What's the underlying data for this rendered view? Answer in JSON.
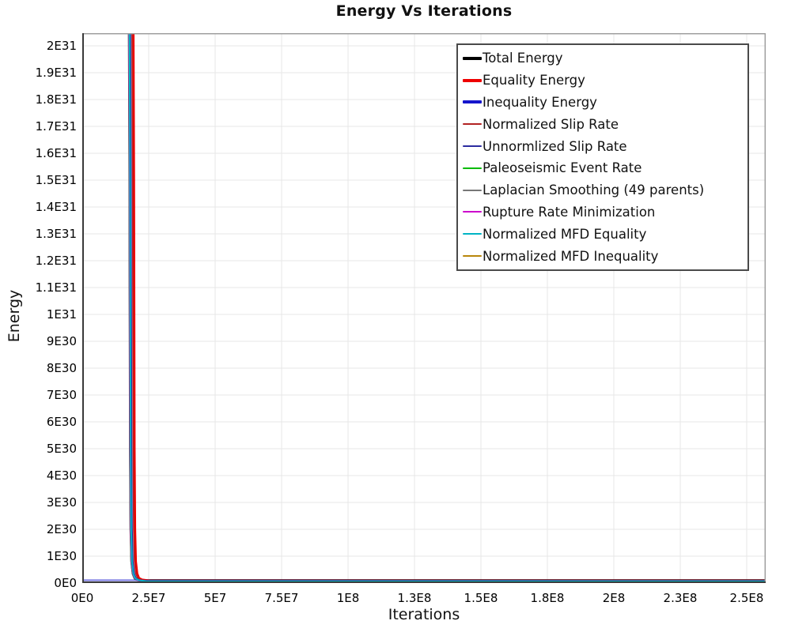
{
  "title": "Energy Vs Iterations",
  "x_axis_label": "Iterations",
  "y_axis_label": "Energy",
  "colors": {
    "grid": "#e7e7e7",
    "plot_border": "#9a9a9a",
    "axis_emphasis": "#3a3a3a",
    "legend_border": "#4a4a4a",
    "text": "#111111"
  },
  "chart_data": {
    "type": "line",
    "title": "Energy Vs Iterations",
    "xlabel": "Iterations",
    "ylabel": "Energy",
    "xlim": [
      0,
      257000000
    ],
    "ylim": [
      0,
      2.047e+31
    ],
    "grid": true,
    "legend_position": "top-right",
    "x_ticks": {
      "values": [
        0,
        25000000,
        50000000,
        75000000,
        100000000,
        125000000,
        150000000,
        175000000,
        200000000,
        225000000,
        250000000
      ],
      "labels": [
        "0E0",
        "2.5E7",
        "5E7",
        "7.5E7",
        "1E8",
        "1.3E8",
        "1.5E8",
        "1.8E8",
        "2E8",
        "2.3E8",
        "2.5E8"
      ]
    },
    "y_ticks": {
      "values": [
        0,
        1e+30,
        2e+30,
        3e+30,
        4e+30,
        5e+30,
        6e+30,
        7e+30,
        8e+30,
        9e+30,
        1e+31,
        1.1e+31,
        1.2e+31,
        1.3e+31,
        1.4e+31,
        1.5e+31,
        1.6e+31,
        1.7e+31,
        1.8e+31,
        1.9e+31,
        2e+31
      ],
      "labels": [
        "0E0",
        "1E30",
        "2E30",
        "3E30",
        "4E30",
        "5E30",
        "6E30",
        "7E30",
        "8E30",
        "9E30",
        "1E31",
        "1.1E31",
        "1.2E31",
        "1.3E31",
        "1.4E31",
        "1.5E31",
        "1.6E31",
        "1.7E31",
        "1.8E31",
        "1.9E31",
        "2E31"
      ]
    },
    "series": [
      {
        "name": "Total Energy",
        "color": "#000000",
        "width": 3.4,
        "thick_legend": true,
        "opacity": 1,
        "points": [
          [
            17600000,
            2.3e+31
          ],
          [
            17900000,
            1.5e+31
          ],
          [
            18100000,
            5e+30
          ],
          [
            18300000,
            2e+30
          ],
          [
            18600000,
            8e+29
          ],
          [
            19110000,
            3.5e+29
          ],
          [
            19800000,
            1.8e+29
          ],
          [
            21000000,
            1.2e+29
          ],
          [
            24000000,
            8.8e+28
          ],
          [
            258000000,
            8.8e+28
          ]
        ]
      },
      {
        "name": "Equality Energy",
        "color": "#ee0000",
        "width": 3.0,
        "thick_legend": true,
        "opacity": 1,
        "points": [
          [
            19120000,
            2.3e+31
          ],
          [
            19420000,
            1.5e+31
          ],
          [
            19620000,
            5e+30
          ],
          [
            19820000,
            2e+30
          ],
          [
            20120000,
            8e+29
          ],
          [
            20630000,
            3.5e+29
          ],
          [
            21320000,
            1.8e+29
          ],
          [
            22520000,
            1.2e+29
          ],
          [
            25520000,
            8.2e+28
          ],
          [
            258000000,
            8.2e+28
          ]
        ]
      },
      {
        "name": "Inequality Energy",
        "color": "#1515cc",
        "width": 2.2,
        "thick_legend": true,
        "opacity": 0.55,
        "points": [
          [
            0,
            1.05e+29
          ],
          [
            20000000,
            1.05e+29
          ],
          [
            23000000,
            9e+28
          ],
          [
            258000000,
            8e+28
          ]
        ]
      },
      {
        "name": "Normalized Slip Rate",
        "color": "#b22222",
        "width": 1.7,
        "thick_legend": false,
        "opacity": 1,
        "points": [
          [
            18650000,
            2.3e+31
          ],
          [
            18950000,
            1.5e+31
          ],
          [
            19150000,
            5e+30
          ],
          [
            19350000,
            2e+30
          ],
          [
            19650000,
            8e+29
          ],
          [
            20160000,
            3.5e+29
          ],
          [
            20850000,
            1.8e+29
          ],
          [
            22050000,
            1e+29
          ],
          [
            25050000,
            4.5e+28
          ],
          [
            258000000,
            4.5e+28
          ]
        ]
      },
      {
        "name": "Unnormlized Slip Rate",
        "color": "#2b2ba0",
        "width": 1.7,
        "thick_legend": false,
        "opacity": 1,
        "points": [
          [
            18050000,
            2.3e+31
          ],
          [
            18350000,
            1.5e+31
          ],
          [
            18550000,
            5e+30
          ],
          [
            18750000,
            2e+30
          ],
          [
            19050000,
            8e+29
          ],
          [
            19560000,
            3.5e+29
          ],
          [
            20250000,
            1.8e+29
          ],
          [
            21450000,
            1.1e+29
          ],
          [
            24450000,
            7.5e+28
          ],
          [
            258000000,
            7.5e+28
          ]
        ]
      },
      {
        "name": "Paleoseismic Event Rate",
        "color": "#00bb00",
        "width": 1.7,
        "thick_legend": false,
        "opacity": 1,
        "points": [
          [
            17500000,
            2.3e+31
          ],
          [
            17800000,
            1.5e+31
          ],
          [
            18000000,
            5e+30
          ],
          [
            18200000,
            2e+30
          ],
          [
            18500000,
            8e+29
          ],
          [
            19010000,
            3.5e+29
          ],
          [
            19700000,
            1.8e+29
          ],
          [
            20900000,
            1.1e+29
          ],
          [
            23900000,
            6e+28
          ],
          [
            258000000,
            6e+28
          ]
        ]
      },
      {
        "name": "Laplacian Smoothing (49 parents)",
        "color": "#777777",
        "width": 1.7,
        "thick_legend": false,
        "opacity": 1,
        "points": [
          [
            17400000,
            2.3e+31
          ],
          [
            17700000,
            1.5e+31
          ],
          [
            17900000,
            5e+30
          ],
          [
            18100000,
            2e+30
          ],
          [
            18400000,
            8e+29
          ],
          [
            18910000,
            3.5e+29
          ],
          [
            19600000,
            1.8e+29
          ],
          [
            20800000,
            1.1e+29
          ],
          [
            23800000,
            6.2e+28
          ],
          [
            258000000,
            6.2e+28
          ]
        ]
      },
      {
        "name": "Rupture Rate Minimization",
        "color": "#cc00cc",
        "width": 1.7,
        "thick_legend": false,
        "opacity": 1,
        "points": [
          [
            17550000,
            2.3e+31
          ],
          [
            17850000,
            1.5e+31
          ],
          [
            18050000,
            5e+30
          ],
          [
            18250000,
            2e+30
          ],
          [
            18550000,
            8e+29
          ],
          [
            19060000,
            3.5e+29
          ],
          [
            19750000,
            1.8e+29
          ],
          [
            20950000,
            1e+29
          ],
          [
            23950000,
            5.8e+28
          ],
          [
            258000000,
            5.8e+28
          ]
        ]
      },
      {
        "name": "Normalized MFD Equality",
        "color": "#00b4c4",
        "width": 2.0,
        "thick_legend": false,
        "opacity": 1,
        "points": [
          [
            17700000,
            2.3e+31
          ],
          [
            18000000,
            1.5e+31
          ],
          [
            18200000,
            5e+30
          ],
          [
            18400000,
            2e+30
          ],
          [
            18700000,
            8e+29
          ],
          [
            19210000,
            3.5e+29
          ],
          [
            19900000,
            1.8e+29
          ],
          [
            21100000,
            1.1e+29
          ],
          [
            24100000,
            6.5e+28
          ],
          [
            258000000,
            6.5e+28
          ]
        ]
      },
      {
        "name": "Normalized MFD Inequality",
        "color": "#b8860b",
        "width": 1.7,
        "thick_legend": false,
        "opacity": 1,
        "points": [
          [
            0,
            1.2e+28
          ],
          [
            258000000,
            1.2e+28
          ]
        ]
      }
    ]
  }
}
